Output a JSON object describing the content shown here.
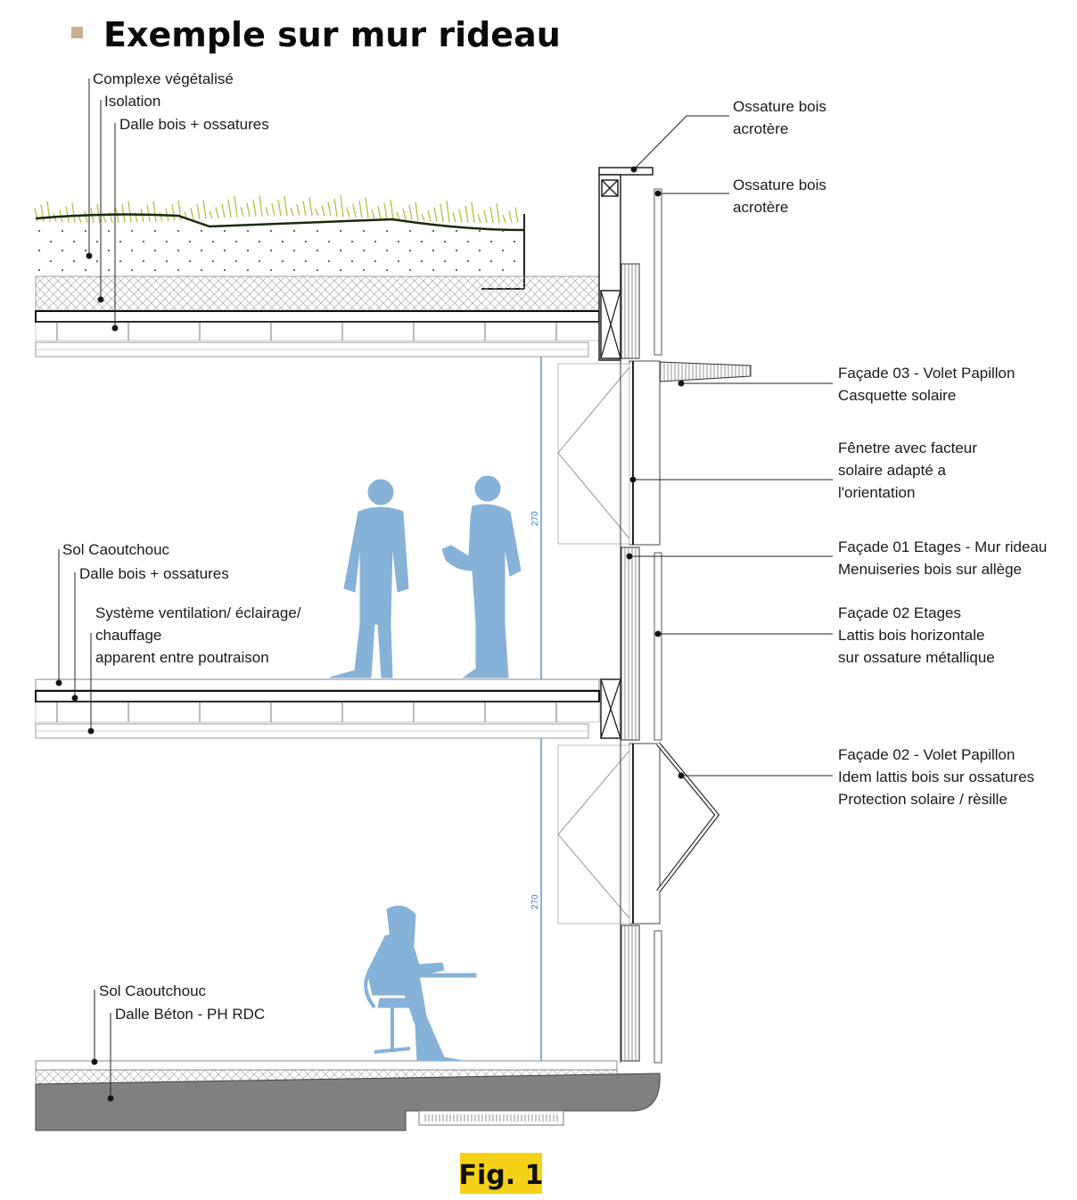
{
  "title": "Exemple sur mur rideau",
  "figure_label": "Fig. 1",
  "colors": {
    "bullet": "#c7b090",
    "figure_highlight": "#f5d21a",
    "human_silhouette": "#86b2d8",
    "vegetation": "#b7c449",
    "concrete": "#808080",
    "dimension": "#3c7ac0"
  },
  "dimensions": [
    "270",
    "270"
  ],
  "labels_left": {
    "roof": [
      "Complexe végétalisé",
      "Isolation",
      "Dalle bois + ossatures"
    ],
    "floor1": [
      "Sol Caoutchouc",
      "Dalle bois + ossatures",
      "Système ventilation/ éclairage/",
      "chauffage",
      "apparent entre poutraison"
    ],
    "ground": [
      "Sol Caoutchouc",
      "Dalle Béton - PH RDC"
    ]
  },
  "labels_right": {
    "acrotere_top": [
      "Ossature bois",
      "acrotère"
    ],
    "acrotere_mid": [
      "Ossature bois",
      "acrotère"
    ],
    "facade03": [
      "Façade 03 - Volet Papillon",
      "Casquette solaire"
    ],
    "fenetre": [
      "Fênetre avec facteur",
      "solaire adapté a",
      "l'orientation"
    ],
    "facade01": [
      "Façade 01 Etages - Mur rideau",
      "Menuiseries bois sur allège"
    ],
    "facade02_etages": [
      "Façade 02 Etages",
      "Lattis bois horizontale",
      "sur ossature métallique"
    ],
    "facade02_volet": [
      "Façade 02 - Volet Papillon",
      "Idem lattis bois sur ossatures",
      "Protection solaire / rèsille"
    ]
  }
}
